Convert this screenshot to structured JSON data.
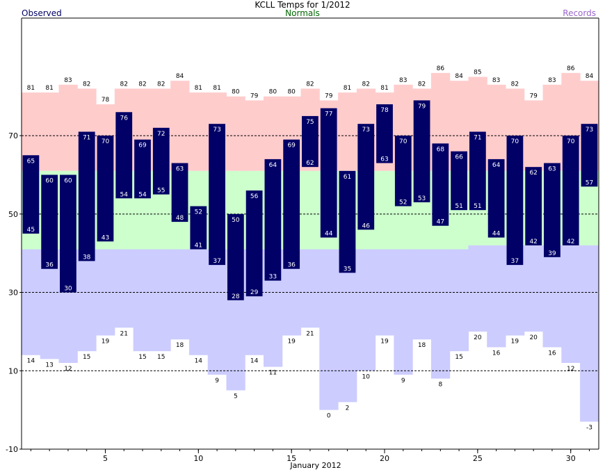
{
  "chart_data": {
    "type": "bar",
    "title": "KCLL Temps for 1/2012",
    "xlabel": "January 2012",
    "ylabel": "",
    "legend": [
      {
        "label": "Observed",
        "color": "#000066"
      },
      {
        "label": "Normals",
        "color": "#006600"
      },
      {
        "label": "Records",
        "color": "#9966cc"
      }
    ],
    "x": [
      1,
      2,
      3,
      4,
      5,
      6,
      7,
      8,
      9,
      10,
      11,
      12,
      13,
      14,
      15,
      16,
      17,
      18,
      19,
      20,
      21,
      22,
      23,
      24,
      25,
      26,
      27,
      28,
      29,
      30,
      31
    ],
    "xticks": [
      5,
      10,
      15,
      20,
      25,
      30
    ],
    "ylim": [
      -10,
      100
    ],
    "yticks": [
      -10,
      10,
      30,
      50,
      70
    ],
    "grid_y": [
      10,
      30,
      50,
      70
    ],
    "series": [
      {
        "name": "Observed",
        "high": [
          65,
          60,
          60,
          71,
          70,
          76,
          69,
          72,
          63,
          52,
          73,
          50,
          56,
          64,
          69,
          75,
          77,
          61,
          73,
          78,
          70,
          79,
          68,
          66,
          71,
          64,
          70,
          62,
          63,
          70,
          73
        ],
        "low": [
          45,
          36,
          30,
          38,
          43,
          54,
          54,
          55,
          48,
          41,
          37,
          28,
          29,
          33,
          36,
          62,
          44,
          35,
          46,
          63,
          52,
          53,
          47,
          51,
          51,
          44,
          37,
          42,
          39,
          42,
          57
        ]
      },
      {
        "name": "Normals",
        "high": [
          61,
          61,
          61,
          61,
          61,
          61,
          61,
          61,
          61,
          61,
          61,
          61,
          61,
          61,
          61,
          61,
          61,
          61,
          61,
          61,
          61,
          61,
          61,
          61,
          61,
          61,
          61,
          61,
          61,
          61,
          61
        ],
        "low": [
          41,
          41,
          41,
          41,
          41,
          41,
          41,
          41,
          41,
          41,
          41,
          41,
          41,
          41,
          41,
          41,
          41,
          41,
          41,
          41,
          41,
          41,
          41,
          41,
          42,
          42,
          42,
          42,
          42,
          42,
          42
        ]
      },
      {
        "name": "Records",
        "high": [
          81,
          81,
          83,
          82,
          78,
          82,
          82,
          82,
          84,
          81,
          81,
          80,
          79,
          80,
          80,
          82,
          79,
          81,
          82,
          81,
          83,
          82,
          86,
          84,
          85,
          83,
          82,
          79,
          83,
          86,
          84
        ],
        "low": [
          14,
          13,
          12,
          15,
          19,
          21,
          15,
          15,
          18,
          14,
          9,
          5,
          14,
          11,
          19,
          21,
          0,
          2,
          10,
          19,
          9,
          18,
          8,
          15,
          20,
          16,
          19,
          20,
          16,
          12,
          -3
        ]
      }
    ],
    "colors": {
      "observed_bar": "#000066",
      "normal_band": "#ccffcc",
      "record_high_band": "#ffcccc",
      "record_low_band": "#ccccff",
      "grid": "#000000",
      "observed_text": "#000066",
      "normals_text": "#006600",
      "records_text": "#9966cc"
    }
  }
}
